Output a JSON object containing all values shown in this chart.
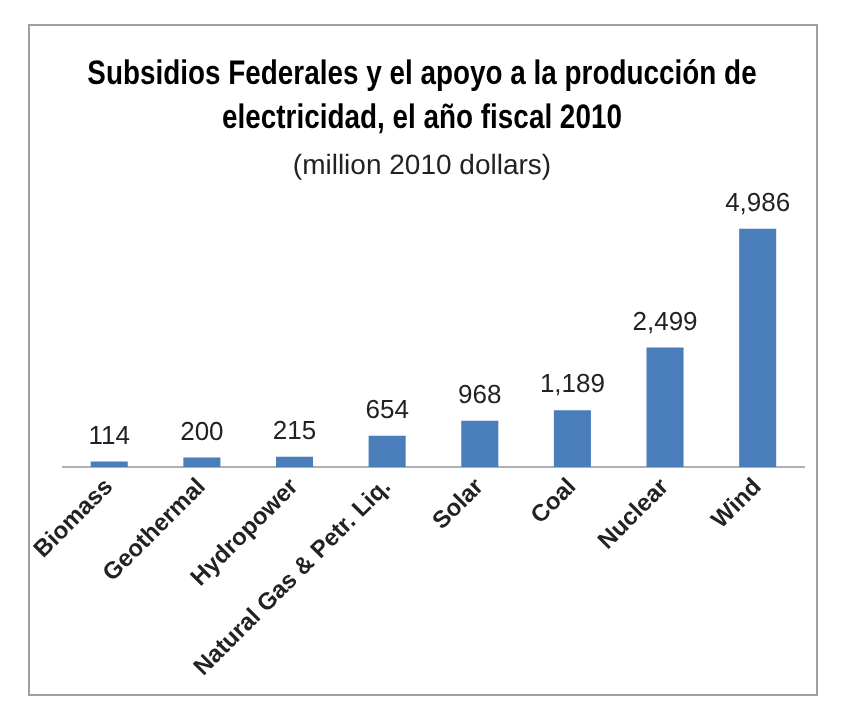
{
  "chart_data": {
    "type": "bar",
    "title": "Subsidios Federales y el apoyo a la producción de electricidad, el año fiscal 2010",
    "subtitle": "(million 2010 dollars)",
    "categories": [
      "Biomass",
      "Geothermal",
      "Hydropower",
      "Natural Gas & Petr. Liq.",
      "Solar",
      "Coal",
      "Nuclear",
      "Wind"
    ],
    "values": [
      114,
      200,
      215,
      654,
      968,
      1189,
      2499,
      4986
    ],
    "value_labels": [
      "114",
      "200",
      "215",
      "654",
      "968",
      "1,189",
      "2,499",
      "4,986"
    ],
    "color": "#4a7ebb",
    "grid": false,
    "legend": false,
    "tick_labels": "x"
  }
}
